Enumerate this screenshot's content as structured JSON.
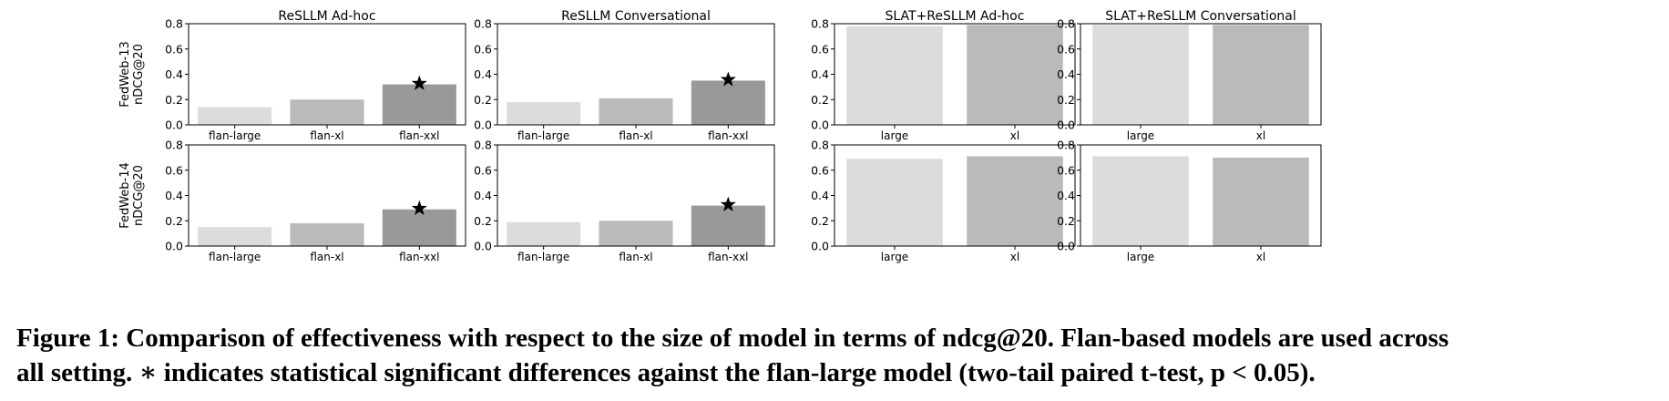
{
  "figure": {
    "row_labels": [
      [
        "FedWeb-13",
        "nDCG@20"
      ],
      [
        "FedWeb-14",
        "nDCG@20"
      ]
    ],
    "caption_line1": "Figure 1: Comparison of effectiveness with respect to the size of model in terms of ndcg@20. Flan-based models are used across",
    "caption_line2": "all setting. ∗ indicates statistical significant differences against the flan-large model (two-tail paired t-test, p < 0.05)."
  },
  "chart_data": [
    {
      "type": "bar",
      "title": "ReSLLM Ad-hoc",
      "ylabel": "FedWeb-13 nDCG@20",
      "categories": [
        "flan-large",
        "flan-xl",
        "flan-xxl"
      ],
      "values": [
        0.14,
        0.2,
        0.32
      ],
      "significant": [
        false,
        false,
        true
      ],
      "ylim": [
        0,
        0.8
      ],
      "yticks": [
        "0.0",
        "0.2",
        "0.4",
        "0.6",
        "0.8"
      ],
      "colors": [
        "#dcdcdc",
        "#bababa",
        "#999999"
      ]
    },
    {
      "type": "bar",
      "title": "ReSLLM Conversational",
      "categories": [
        "flan-large",
        "flan-xl",
        "flan-xxl"
      ],
      "values": [
        0.18,
        0.21,
        0.35
      ],
      "significant": [
        false,
        false,
        true
      ],
      "ylim": [
        0,
        0.8
      ],
      "yticks": [
        "0.0",
        "0.2",
        "0.4",
        "0.6",
        "0.8"
      ],
      "colors": [
        "#dcdcdc",
        "#bababa",
        "#999999"
      ]
    },
    {
      "type": "bar",
      "title": "SLAT+ReSLLM Ad-hoc",
      "categories": [
        "large",
        "xl"
      ],
      "values": [
        0.78,
        0.79
      ],
      "significant": [
        false,
        false
      ],
      "ylim": [
        0,
        0.8
      ],
      "yticks": [
        "0.0",
        "0.2",
        "0.4",
        "0.6",
        "0.8"
      ],
      "colors": [
        "#dcdcdc",
        "#bababa"
      ]
    },
    {
      "type": "bar",
      "title": "SLAT+ReSLLM Conversational",
      "categories": [
        "large",
        "xl"
      ],
      "values": [
        0.79,
        0.79
      ],
      "significant": [
        false,
        false
      ],
      "ylim": [
        0,
        0.8
      ],
      "yticks": [
        "0.0",
        "0.2",
        "0.4",
        "0.6",
        "0.8"
      ],
      "colors": [
        "#dcdcdc",
        "#bababa"
      ]
    },
    {
      "type": "bar",
      "title": "",
      "ylabel": "FedWeb-14 nDCG@20",
      "categories": [
        "flan-large",
        "flan-xl",
        "flan-xxl"
      ],
      "values": [
        0.15,
        0.18,
        0.29
      ],
      "significant": [
        false,
        false,
        true
      ],
      "ylim": [
        0,
        0.8
      ],
      "yticks": [
        "0.0",
        "0.2",
        "0.4",
        "0.6",
        "0.8"
      ],
      "colors": [
        "#dcdcdc",
        "#bababa",
        "#999999"
      ]
    },
    {
      "type": "bar",
      "title": "",
      "categories": [
        "flan-large",
        "flan-xl",
        "flan-xxl"
      ],
      "values": [
        0.19,
        0.2,
        0.32
      ],
      "significant": [
        false,
        false,
        true
      ],
      "ylim": [
        0,
        0.8
      ],
      "yticks": [
        "0.0",
        "0.2",
        "0.4",
        "0.6",
        "0.8"
      ],
      "colors": [
        "#dcdcdc",
        "#bababa",
        "#999999"
      ]
    },
    {
      "type": "bar",
      "title": "",
      "categories": [
        "large",
        "xl"
      ],
      "values": [
        0.69,
        0.71
      ],
      "significant": [
        false,
        false
      ],
      "ylim": [
        0,
        0.8
      ],
      "yticks": [
        "0.0",
        "0.2",
        "0.4",
        "0.6",
        "0.8"
      ],
      "colors": [
        "#dcdcdc",
        "#bababa"
      ]
    },
    {
      "type": "bar",
      "title": "",
      "categories": [
        "large",
        "xl"
      ],
      "values": [
        0.71,
        0.7
      ],
      "significant": [
        false,
        false
      ],
      "ylim": [
        0,
        0.8
      ],
      "yticks": [
        "0.0",
        "0.2",
        "0.4",
        "0.6",
        "0.8"
      ],
      "colors": [
        "#dcdcdc",
        "#bababa"
      ]
    }
  ]
}
